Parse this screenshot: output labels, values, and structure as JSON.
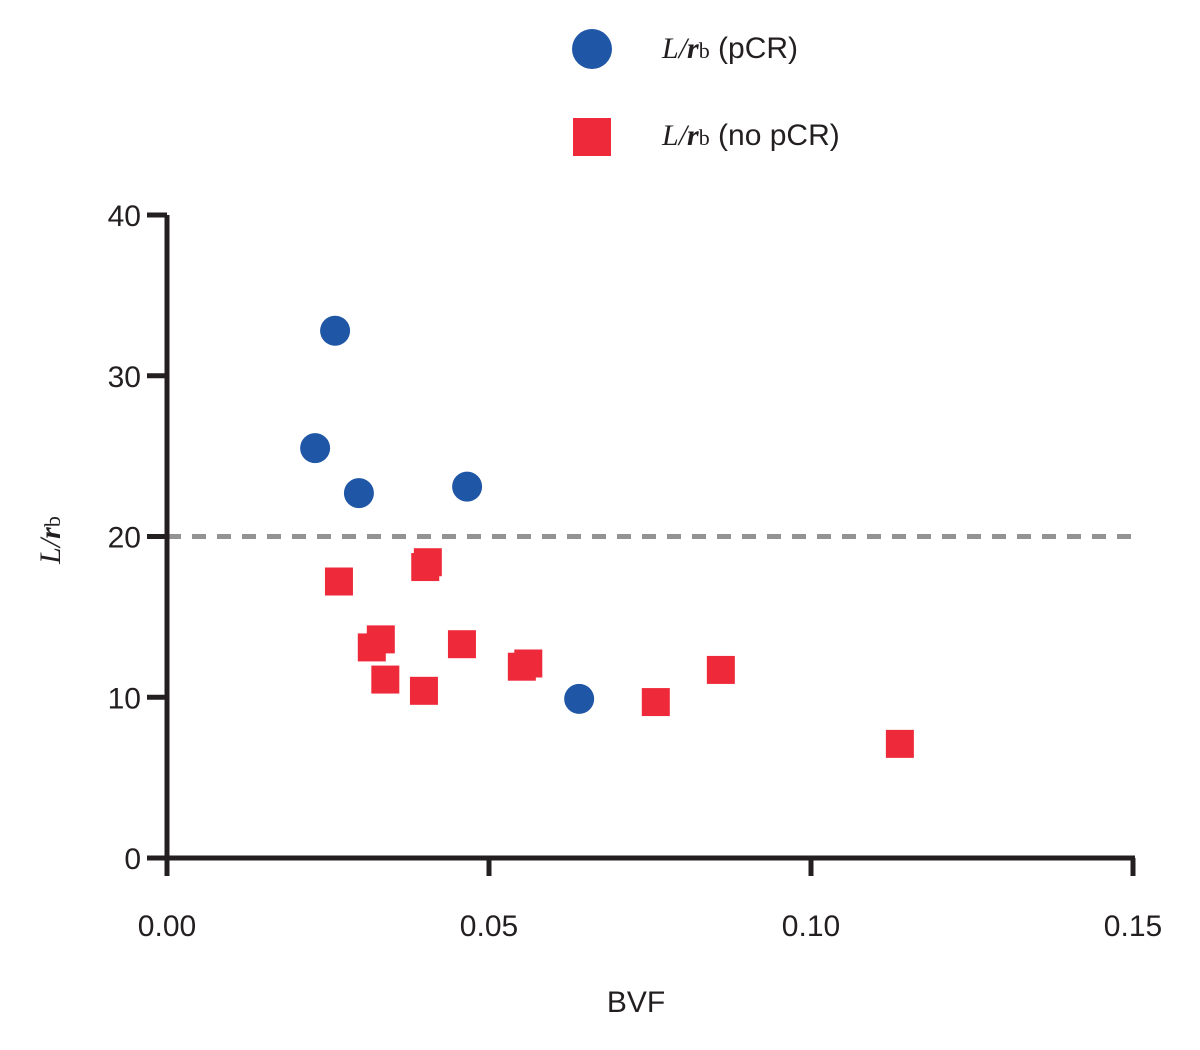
{
  "chart_data": {
    "type": "scatter",
    "title": "",
    "xlabel": "BVF",
    "ylabel": {
      "italic": "L",
      "slash": "/",
      "bold_italic": "r",
      "subscript": "b"
    },
    "xlim": [
      0,
      0.15
    ],
    "ylim": [
      0,
      40
    ],
    "x_ticks": [
      0.0,
      0.05,
      0.1,
      0.15
    ],
    "x_tick_labels": [
      "0.00",
      "0.05",
      "0.10",
      "0.15"
    ],
    "y_ticks": [
      0,
      10,
      20,
      30,
      40
    ],
    "y_tick_labels": [
      "0",
      "10",
      "20",
      "30",
      "40"
    ],
    "grid": false,
    "legend_position": "top-center",
    "reference_line": {
      "orientation": "horizontal",
      "y": 20,
      "style": "dashed",
      "color": "#939393"
    },
    "series": [
      {
        "name": "L/rb (pCR)",
        "legend": {
          "italic": "L",
          "slash": "/",
          "bold_italic": "r",
          "subscript": "b",
          "suffix": " (pCR)"
        },
        "marker": "circle",
        "color": "#1f56a5",
        "points": [
          {
            "x": 0.0261,
            "y": 32.8
          },
          {
            "x": 0.023,
            "y": 25.5
          },
          {
            "x": 0.0298,
            "y": 22.7
          },
          {
            "x": 0.0466,
            "y": 23.1
          },
          {
            "x": 0.064,
            "y": 9.9
          }
        ]
      },
      {
        "name": "L/rb (no pCR)",
        "legend": {
          "italic": "L",
          "slash": "/",
          "bold_italic": "r",
          "subscript": "b",
          "suffix": " (no pCR)"
        },
        "marker": "square",
        "color": "#ee2a3a",
        "points": [
          {
            "x": 0.0267,
            "y": 17.2
          },
          {
            "x": 0.0401,
            "y": 18.1
          },
          {
            "x": 0.0405,
            "y": 18.4
          },
          {
            "x": 0.0318,
            "y": 13.1
          },
          {
            "x": 0.0332,
            "y": 13.6
          },
          {
            "x": 0.0339,
            "y": 11.1
          },
          {
            "x": 0.0399,
            "y": 10.4
          },
          {
            "x": 0.0458,
            "y": 13.3
          },
          {
            "x": 0.0551,
            "y": 11.9
          },
          {
            "x": 0.0561,
            "y": 12.1
          },
          {
            "x": 0.0759,
            "y": 9.7
          },
          {
            "x": 0.086,
            "y": 11.7
          },
          {
            "x": 0.1138,
            "y": 7.1
          }
        ]
      }
    ]
  }
}
